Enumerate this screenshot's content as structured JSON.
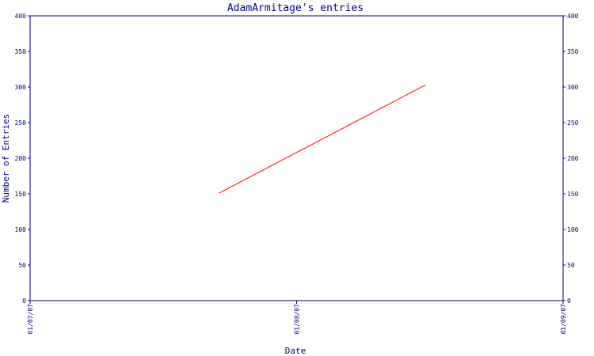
{
  "chart_data": {
    "type": "line",
    "title": "AdamArmitage's entries",
    "xlabel": "Date",
    "ylabel": "Number of Entries",
    "x_ticks": [
      "01/07/07",
      "01/08/07",
      "01/09/07"
    ],
    "xlim": [
      "2007-07-01",
      "2007-09-01"
    ],
    "ylim": [
      0,
      400
    ],
    "y_ticks": [
      0,
      50,
      100,
      150,
      200,
      250,
      300,
      350,
      400
    ],
    "series": [
      {
        "color": "#ff0000",
        "points": [
          {
            "x": "2007-07-23",
            "y": 151
          },
          {
            "x": "2007-08-16",
            "y": 303
          }
        ]
      }
    ],
    "grid": false,
    "legend": "none",
    "colors": {
      "axis": "#000080",
      "text": "#000080",
      "line": "#ff0000"
    }
  }
}
